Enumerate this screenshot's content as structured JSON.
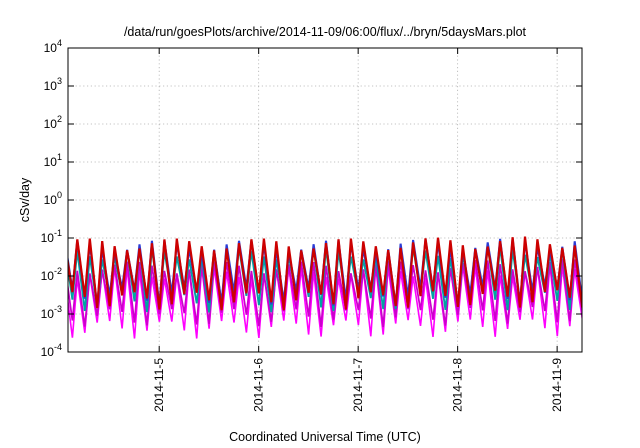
{
  "chart_data": {
    "type": "line",
    "title": "/data/run/goesPlots/archive/2014-11-09/06:00/flux/../bryn/5daysMars.plot",
    "xlabel": "Coordinated Universal Time (UTC)",
    "ylabel": "cSv/day",
    "yscale": "log",
    "ylim": [
      0.0001,
      10000
    ],
    "xlim": [
      "2014-11-04 02:00",
      "2014-11-09 06:00"
    ],
    "grid": true,
    "legend": "none",
    "y_ticks": [
      {
        "base": "10",
        "exp": "-4",
        "value": 0.0001
      },
      {
        "base": "10",
        "exp": "-3",
        "value": 0.001
      },
      {
        "base": "10",
        "exp": "-2",
        "value": 0.01
      },
      {
        "base": "10",
        "exp": "-1",
        "value": 0.1
      },
      {
        "base": "10",
        "exp": "0",
        "value": 1
      },
      {
        "base": "10",
        "exp": "1",
        "value": 10
      },
      {
        "base": "10",
        "exp": "2",
        "value": 100
      },
      {
        "base": "10",
        "exp": "3",
        "value": 1000
      },
      {
        "base": "10",
        "exp": "4",
        "value": 10000
      }
    ],
    "x_ticks": [
      "2014-11-5",
      "2014-11-6",
      "2014-11-7",
      "2014-11-8",
      "2014-11-9"
    ],
    "cycle_hours": 3,
    "series_colors": [
      "#cc0000",
      "#2a3bd6",
      "#00a3a3",
      "#cc00cc",
      "#ff00ff"
    ],
    "series": [
      {
        "color": "#cc0000",
        "peak": 0.072,
        "trough": 0.0025
      },
      {
        "color": "#2a3bd6",
        "peak": 0.065,
        "trough": 0.0032
      },
      {
        "color": "#00a3a3",
        "peak": 0.042,
        "trough": 0.0022
      },
      {
        "color": "#cc00cc",
        "peak": 0.018,
        "trough": 0.0009
      },
      {
        "color": "#ff00ff",
        "peak": 0.013,
        "trough": 0.00045
      }
    ]
  }
}
